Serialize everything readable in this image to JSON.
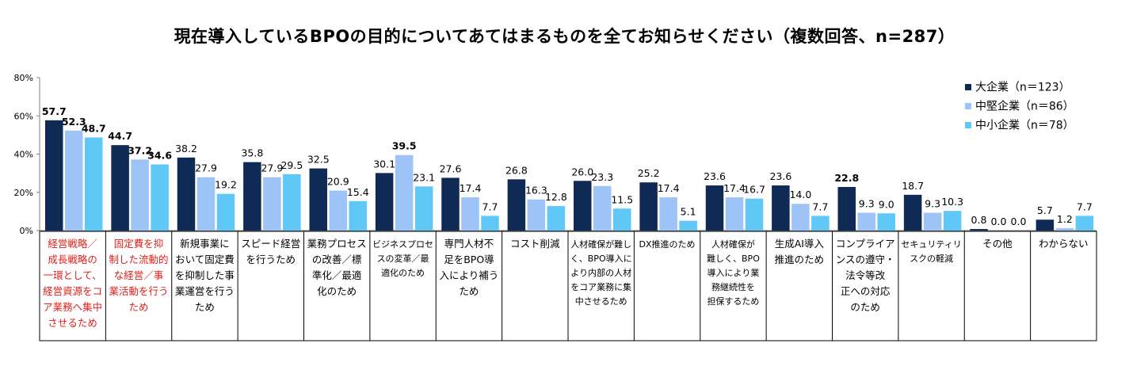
{
  "chart_data": {
    "type": "bar",
    "title": "現在導入しているBPOの目的についてあてはまるものを全てお知らせください（複数回答、n=287）",
    "ylim": [
      0,
      80
    ],
    "y_ticks": [
      "0%",
      "20%",
      "40%",
      "60%",
      "80%"
    ],
    "y_tick_values": [
      0,
      20,
      40,
      60,
      80
    ],
    "legend_position": "top-right",
    "categories": [
      [
        "経営戦略／",
        "成長戦略の",
        "一環として、",
        "経営資源をコ",
        "ア業務へ集中",
        "させるため"
      ],
      [
        "固定費を抑",
        "制した流動的",
        "な経営／事",
        "業活動を行う",
        "ため"
      ],
      [
        "新規事業に",
        "おいて固定費",
        "を抑制した事",
        "業運営を行う",
        "ため"
      ],
      [
        "スピード経営",
        "を行うため"
      ],
      [
        "業務プロセス",
        "の改善／標",
        "準化／最適",
        "化のため"
      ],
      [
        "ビジネスプロセ",
        "スの変革／最",
        "適化のため"
      ],
      [
        "専門人材不",
        "足をBPO導",
        "入により補う",
        "ため"
      ],
      [
        "コスト削減"
      ],
      [
        "人材確保が難し",
        "く、BPO導入に",
        "より内部の人材",
        "をコア業務に集",
        "中させるため"
      ],
      [
        "DX推進のため"
      ],
      [
        "人材確保が",
        "難しく、BPO",
        "導入により業",
        "務継続性を",
        "担保するため"
      ],
      [
        "生成AI導入",
        "推進のため"
      ],
      [
        "コンプライア",
        "ンスの遵守・",
        "法令等改",
        "正への対応",
        "のため"
      ],
      [
        "セキュリティリ",
        "スクの軽減"
      ],
      [
        "その他"
      ],
      [
        "わからない"
      ]
    ],
    "highlighted_categories": [
      0,
      1
    ],
    "highlight_color": "#e0201b",
    "series": [
      {
        "name": "大企業（n＝123）",
        "color": "#0f2a54",
        "values": [
          57.7,
          44.7,
          38.2,
          35.8,
          32.5,
          30.1,
          27.6,
          26.8,
          26.0,
          25.2,
          23.6,
          23.6,
          22.8,
          18.7,
          0.8,
          5.7
        ],
        "bold_labels": [
          true,
          true,
          false,
          false,
          false,
          false,
          false,
          false,
          false,
          false,
          false,
          false,
          true,
          false,
          false,
          false
        ]
      },
      {
        "name": "中堅企業（n＝86）",
        "color": "#9dc3f7",
        "values": [
          52.3,
          37.2,
          27.9,
          27.9,
          20.9,
          39.5,
          17.4,
          16.3,
          23.3,
          17.4,
          17.4,
          14.0,
          9.3,
          9.3,
          0.0,
          1.2
        ],
        "bold_labels": [
          true,
          true,
          false,
          false,
          false,
          true,
          false,
          false,
          false,
          false,
          false,
          false,
          false,
          false,
          false,
          false
        ]
      },
      {
        "name": "中小企業（n＝78）",
        "color": "#5fc8f7",
        "values": [
          48.7,
          34.6,
          19.2,
          29.5,
          15.4,
          23.1,
          7.7,
          12.8,
          11.5,
          5.1,
          16.7,
          7.7,
          9.0,
          10.3,
          0.0,
          7.7
        ],
        "bold_labels": [
          true,
          true,
          false,
          false,
          false,
          false,
          false,
          false,
          false,
          false,
          false,
          false,
          false,
          false,
          false,
          false
        ]
      }
    ]
  }
}
